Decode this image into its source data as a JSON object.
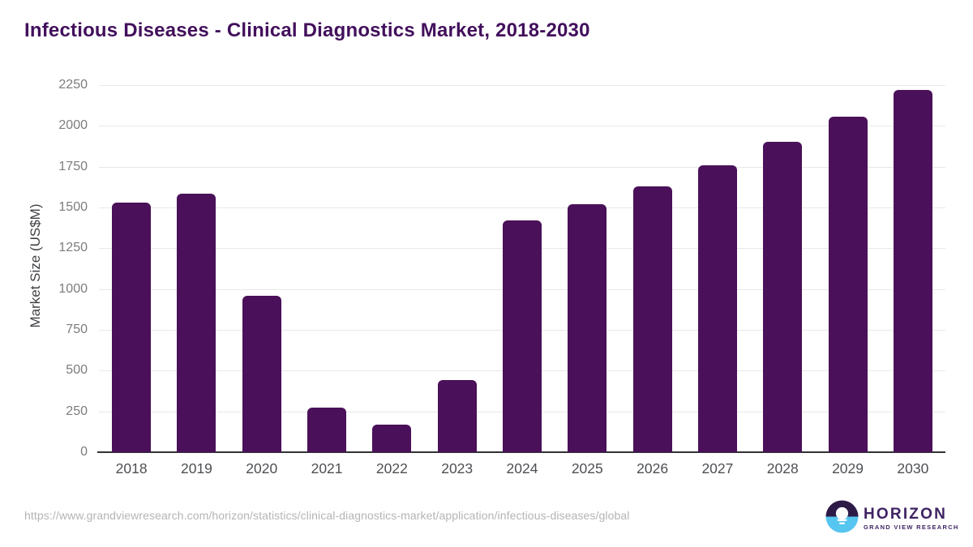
{
  "title": "Infectious Diseases - Clinical Diagnostics Market, 2018-2030",
  "chart_data": {
    "type": "bar",
    "title": "Infectious Diseases - Clinical Diagnostics Market, 2018-2030",
    "categories": [
      "2018",
      "2019",
      "2020",
      "2021",
      "2022",
      "2023",
      "2024",
      "2025",
      "2026",
      "2027",
      "2028",
      "2029",
      "2030"
    ],
    "values": [
      1530,
      1585,
      960,
      275,
      170,
      440,
      1420,
      1520,
      1630,
      1760,
      1900,
      2055,
      2220
    ],
    "xlabel": "",
    "ylabel": "Market Size (US$M)",
    "ylim": [
      0,
      2250
    ],
    "ytick_step": 250,
    "yticks": [
      0,
      250,
      500,
      750,
      1000,
      1250,
      1500,
      1750,
      2000,
      2250
    ],
    "grid": "horizontal",
    "legend_position": "none",
    "bar_color": "#4a1059"
  },
  "footer": {
    "source_url": "https://www.grandviewresearch.com/horizon/statistics/clinical-diagnostics-market/application/infectious-diseases/global",
    "logo": {
      "name": "HORIZON",
      "subtitle": "GRAND VIEW RESEARCH"
    }
  },
  "colors": {
    "title_text": "#42105c",
    "bar": "#4a1059",
    "gridline": "#e8e8e8",
    "axis_line": "#323234",
    "y_tick_text": "#7b7c7e",
    "x_tick_text": "#4d4f52",
    "url_text": "#b4b4b7",
    "logo_purple": "#2e1a47",
    "logo_blue": "#56c5f0",
    "logo_text": "#3e2363"
  }
}
